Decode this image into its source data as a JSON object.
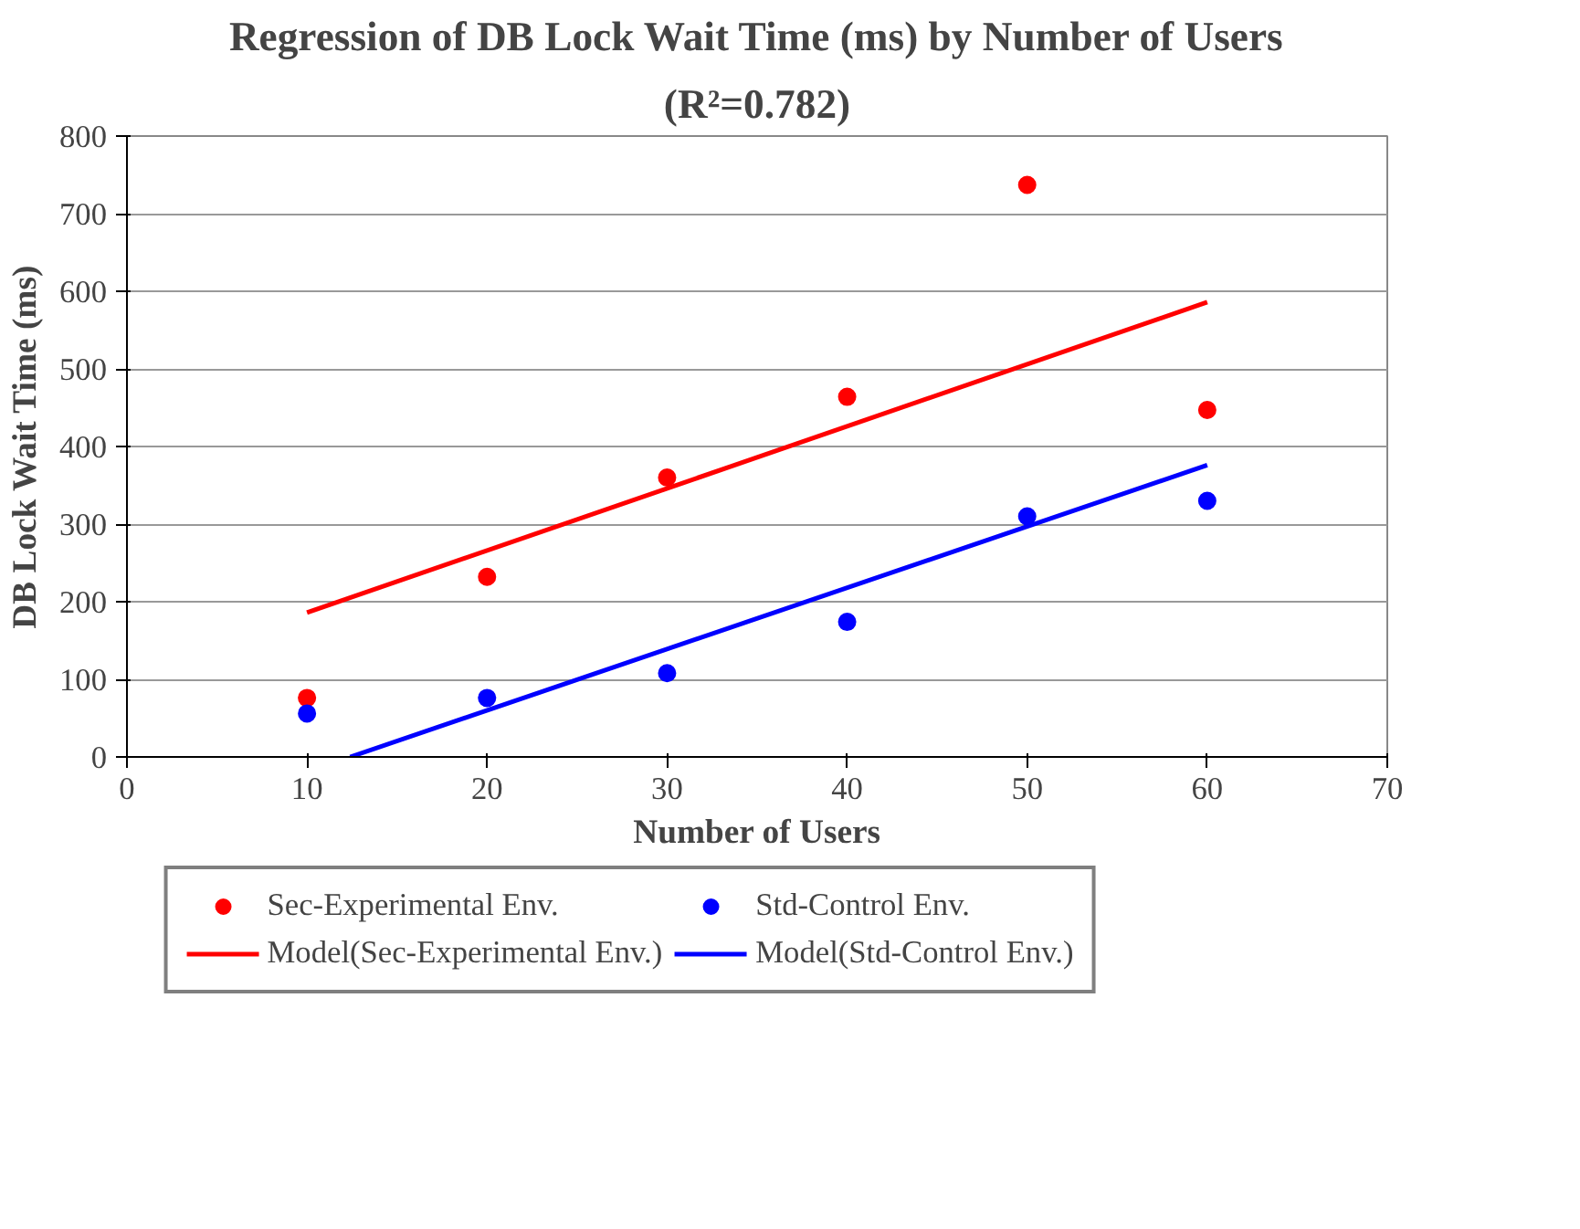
{
  "chart_data": {
    "type": "scatter",
    "title": "Regression of DB Lock Wait Time (ms) by Number of Users",
    "subtitle": "(R²=0.782)",
    "xlabel": "Number of Users",
    "ylabel": "DB Lock Wait Time (ms)",
    "x": [
      10,
      20,
      30,
      40,
      50,
      60
    ],
    "series": [
      {
        "name": "Sec-Experimental Env.",
        "color": "#ff0000",
        "marker": "circle",
        "values": [
          76,
          232,
          360,
          464,
          737,
          447
        ]
      },
      {
        "name": "Std-Control Env.",
        "color": "#0000ff",
        "marker": "circle",
        "values": [
          56,
          76,
          108,
          174,
          310,
          330
        ]
      },
      {
        "name": "Model(Sec-Experimental Env.)",
        "type": "line",
        "color": "#ff0000",
        "x": [
          10,
          60
        ],
        "values": [
          186,
          586
        ]
      },
      {
        "name": "Model(Std-Control Env.)",
        "type": "line",
        "color": "#0000ff",
        "x": [
          12.4,
          60
        ],
        "values": [
          0,
          376
        ]
      }
    ],
    "xlim": [
      0,
      70
    ],
    "xticks": [
      0,
      10,
      20,
      30,
      40,
      50,
      60,
      70
    ],
    "ylim": [
      0,
      800
    ],
    "yticks": [
      0,
      100,
      200,
      300,
      400,
      500,
      600,
      700,
      800
    ],
    "grid": "y",
    "legend": "bottom",
    "line_style": "solid"
  }
}
